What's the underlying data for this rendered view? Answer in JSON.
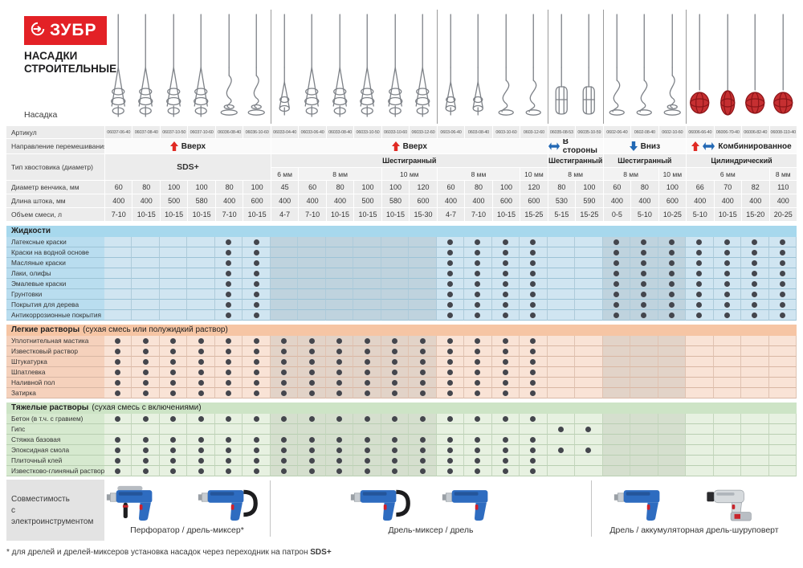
{
  "brand": {
    "logo_text": "ЗУБР",
    "title_line1": "НАСАДКИ",
    "title_line2": "СТРОИТЕЛЬНЫЕ"
  },
  "labels": {
    "nozzle": "Насадка",
    "article": "Артикул",
    "direction": "Направление перемешивания",
    "shank": "Тип хвостовика (диаметр)",
    "diameter": "Диаметр венчика, мм",
    "length": "Длина штока, мм",
    "volume": "Объем смеси, л"
  },
  "columns": [
    {
      "article": "06037-06-40",
      "diameter": "60",
      "length": "400",
      "volume": "7-10",
      "head": "whisk"
    },
    {
      "article": "06037-08-40",
      "diameter": "80",
      "length": "400",
      "volume": "10-15",
      "head": "whisk"
    },
    {
      "article": "06037-10-50",
      "diameter": "100",
      "length": "500",
      "volume": "10-15",
      "head": "whisk"
    },
    {
      "article": "06037-10-60",
      "diameter": "100",
      "length": "580",
      "volume": "10-15",
      "head": "whisk"
    },
    {
      "article": "06036-08-40",
      "diameter": "80",
      "length": "400",
      "volume": "7-10",
      "head": "disc"
    },
    {
      "article": "06036-10-60",
      "diameter": "100",
      "length": "600",
      "volume": "10-15",
      "head": "disc"
    },
    {
      "article": "06033-04-40",
      "diameter": "45",
      "length": "400",
      "volume": "4-7",
      "head": "beater"
    },
    {
      "article": "06033-06-40",
      "diameter": "60",
      "length": "400",
      "volume": "7-10",
      "head": "whisk"
    },
    {
      "article": "06033-08-40",
      "diameter": "80",
      "length": "400",
      "volume": "10-15",
      "head": "whisk"
    },
    {
      "article": "06033-10-50",
      "diameter": "100",
      "length": "500",
      "volume": "10-15",
      "head": "whisk"
    },
    {
      "article": "06033-10-60",
      "diameter": "100",
      "length": "580",
      "volume": "10-15",
      "head": "whisk"
    },
    {
      "article": "06033-12-60",
      "diameter": "120",
      "length": "600",
      "volume": "15-30",
      "head": "whisk"
    },
    {
      "article": "0603-06-40",
      "diameter": "60",
      "length": "400",
      "volume": "4-7",
      "head": "beater"
    },
    {
      "article": "0603-08-40",
      "diameter": "80",
      "length": "400",
      "volume": "7-10",
      "head": "beater"
    },
    {
      "article": "0603-10-60",
      "diameter": "100",
      "length": "600",
      "volume": "10-15",
      "head": "swirl"
    },
    {
      "article": "0603-12-60",
      "diameter": "120",
      "length": "600",
      "volume": "15-25",
      "head": "swirl"
    },
    {
      "article": "06035-08-53",
      "diameter": "80",
      "length": "530",
      "volume": "5-15",
      "head": "cage"
    },
    {
      "article": "06035-10-59",
      "diameter": "100",
      "length": "590",
      "volume": "15-25",
      "head": "cage"
    },
    {
      "article": "0602-06-40",
      "diameter": "60",
      "length": "400",
      "volume": "0-5",
      "head": "swirl"
    },
    {
      "article": "0602-08-40",
      "diameter": "80",
      "length": "400",
      "volume": "5-10",
      "head": "swirl"
    },
    {
      "article": "0602-10-60",
      "diameter": "100",
      "length": "600",
      "volume": "10-25",
      "head": "disc"
    },
    {
      "article": "06006-66-40",
      "diameter": "66",
      "length": "400",
      "volume": "5-10",
      "head": "ball"
    },
    {
      "article": "06006-70-40",
      "diameter": "70",
      "length": "400",
      "volume": "10-15",
      "head": "ball2"
    },
    {
      "article": "06006-82-40",
      "diameter": "82",
      "length": "400",
      "volume": "15-20",
      "head": "ball"
    },
    {
      "article": "06008-110-40",
      "diameter": "110",
      "length": "400",
      "volume": "20-25",
      "head": "ball"
    }
  ],
  "direction_spans": [
    {
      "span": 6,
      "label": "Вверх",
      "arrows": [
        "up"
      ]
    },
    {
      "span": 10,
      "label": "Вверх",
      "arrows": [
        "up"
      ]
    },
    {
      "span": 2,
      "label": "В стороны",
      "arrows": [
        "lr"
      ]
    },
    {
      "span": 3,
      "label": "Вниз",
      "arrows": [
        "down"
      ]
    },
    {
      "span": 4,
      "label": "Комбинированное",
      "arrows": [
        "up",
        "lr"
      ]
    }
  ],
  "shank_spans": [
    {
      "span": 6,
      "label": "SDS+",
      "tall": true
    },
    {
      "span": 10,
      "label": "Шестигранный"
    },
    {
      "span": 2,
      "label": "Шестигранный"
    },
    {
      "span": 3,
      "label": "Шестигранный"
    },
    {
      "span": 4,
      "label": "Цилиндрический"
    }
  ],
  "size_spans": [
    {
      "span": 1,
      "label": "6 мм"
    },
    {
      "span": 3,
      "label": "8 мм"
    },
    {
      "span": 2,
      "label": "10 мм"
    },
    {
      "span": 3,
      "label": "8 мм"
    },
    {
      "span": 1,
      "label": "10 мм"
    },
    {
      "span": 2,
      "label": "8 мм"
    },
    {
      "span": 2,
      "label": "8 мм"
    },
    {
      "span": 1,
      "label": "10 мм"
    },
    {
      "span": 3,
      "label": "6 мм"
    },
    {
      "span": 1,
      "label": "8 мм"
    }
  ],
  "dark_columns": [
    7,
    8,
    9,
    10,
    11,
    12,
    19,
    20,
    21
  ],
  "sections": [
    {
      "id": "liquids",
      "title": "Жидкости",
      "subtitle": "",
      "rows": [
        {
          "label": "Латексные краски",
          "dots": [
            5,
            6,
            13,
            14,
            15,
            16,
            19,
            20,
            21,
            22,
            23,
            24,
            25
          ]
        },
        {
          "label": "Краски на водной основе",
          "dots": [
            5,
            6,
            13,
            14,
            15,
            16,
            19,
            20,
            21,
            22,
            23,
            24,
            25
          ]
        },
        {
          "label": "Масляные краски",
          "dots": [
            5,
            6,
            13,
            14,
            15,
            16,
            19,
            20,
            21,
            22,
            23,
            24,
            25
          ]
        },
        {
          "label": "Лаки, олифы",
          "dots": [
            5,
            6,
            13,
            14,
            15,
            16,
            19,
            20,
            21,
            22,
            23,
            24,
            25
          ]
        },
        {
          "label": "Эмалевые краски",
          "dots": [
            5,
            6,
            13,
            14,
            15,
            16,
            19,
            20,
            21,
            22,
            23,
            24,
            25
          ]
        },
        {
          "label": "Грунтовки",
          "dots": [
            5,
            6,
            13,
            14,
            15,
            16,
            19,
            20,
            21,
            22,
            23,
            24,
            25
          ]
        },
        {
          "label": "Покрытия для дерева",
          "dots": [
            5,
            6,
            13,
            14,
            15,
            16,
            19,
            20,
            21,
            22,
            23,
            24,
            25
          ]
        },
        {
          "label": "Антикоррозионные покрытия",
          "dots": [
            5,
            6,
            13,
            14,
            15,
            16,
            19,
            20,
            21,
            22,
            23,
            24,
            25
          ]
        }
      ]
    },
    {
      "id": "light",
      "title": "Легкие растворы",
      "subtitle": "(сухая смесь или полужидкий раствор)",
      "rows": [
        {
          "label": "Уплотнительная мастика",
          "dots": [
            1,
            2,
            3,
            4,
            5,
            6,
            7,
            8,
            9,
            10,
            11,
            12,
            13,
            14,
            15,
            16
          ]
        },
        {
          "label": "Известковый раствор",
          "dots": [
            1,
            2,
            3,
            4,
            5,
            6,
            7,
            8,
            9,
            10,
            11,
            12,
            13,
            14,
            15,
            16
          ]
        },
        {
          "label": "Штукатурка",
          "dots": [
            1,
            2,
            3,
            4,
            5,
            6,
            7,
            8,
            9,
            10,
            11,
            12,
            13,
            14,
            15,
            16
          ]
        },
        {
          "label": "Шпатлевка",
          "dots": [
            1,
            2,
            3,
            4,
            5,
            6,
            7,
            8,
            9,
            10,
            11,
            12,
            13,
            14,
            15,
            16
          ]
        },
        {
          "label": "Наливной пол",
          "dots": [
            1,
            2,
            3,
            4,
            5,
            6,
            7,
            8,
            9,
            10,
            11,
            12,
            13,
            14,
            15,
            16
          ]
        },
        {
          "label": "Затирка",
          "dots": [
            1,
            2,
            3,
            4,
            5,
            6,
            7,
            8,
            9,
            10,
            11,
            12,
            13,
            14,
            15,
            16
          ]
        }
      ]
    },
    {
      "id": "heavy",
      "title": "Тяжелые растворы",
      "subtitle": "(сухая смесь с включениями)",
      "rows": [
        {
          "label": "Бетон (в т.ч. с гравием)",
          "dots": [
            1,
            2,
            3,
            4,
            5,
            6,
            7,
            8,
            9,
            10,
            11,
            12,
            13,
            14,
            15,
            16
          ]
        },
        {
          "label": "Гипс",
          "dots": [
            17,
            18
          ]
        },
        {
          "label": "Стяжка базовая",
          "dots": [
            1,
            2,
            3,
            4,
            5,
            6,
            7,
            8,
            9,
            10,
            11,
            12,
            13,
            14,
            15,
            16
          ]
        },
        {
          "label": "Эпоксидная смола",
          "dots": [
            1,
            2,
            3,
            4,
            5,
            6,
            7,
            8,
            9,
            10,
            11,
            12,
            13,
            14,
            15,
            16,
            17,
            18
          ]
        },
        {
          "label": "Плиточный клей",
          "dots": [
            1,
            2,
            3,
            4,
            5,
            6,
            7,
            8,
            9,
            10,
            11,
            12,
            13,
            14,
            15,
            16
          ]
        },
        {
          "label": "Известково-глиняный раствор",
          "dots": [
            1,
            2,
            3,
            4,
            5,
            6,
            7,
            8,
            9,
            10,
            11,
            12,
            13,
            14,
            15,
            16
          ]
        }
      ]
    }
  ],
  "compatibility": {
    "label_line1": "Совместимость",
    "label_line2": "с электроинструментом",
    "groups": [
      {
        "label": "Перфоратор / дрель-миксер*",
        "tools": [
          "perforator",
          "mixerdrill"
        ]
      },
      {
        "label": "Дрель-миксер / дрель",
        "tools": [
          "mixerdrill",
          "drill"
        ]
      },
      {
        "label": "Дрель / аккумуляторная дрель-шуруповерт",
        "tools": [
          "drill",
          "cordless"
        ]
      }
    ]
  },
  "footnote": {
    "prefix": "* для дрелей и дрелей-миксеров установка насадок через переходник на патрон ",
    "bold": "SDS+"
  },
  "colors": {
    "brand_red": "#e32126",
    "arrow_red": "#e02b24",
    "arrow_blue": "#2268b4",
    "liquids_band": "#a7d8ed",
    "light_band": "#f6c5a4",
    "heavy_band": "#cde4c6",
    "dot": "#44464d",
    "mixer_head_red": "#c62f31"
  }
}
